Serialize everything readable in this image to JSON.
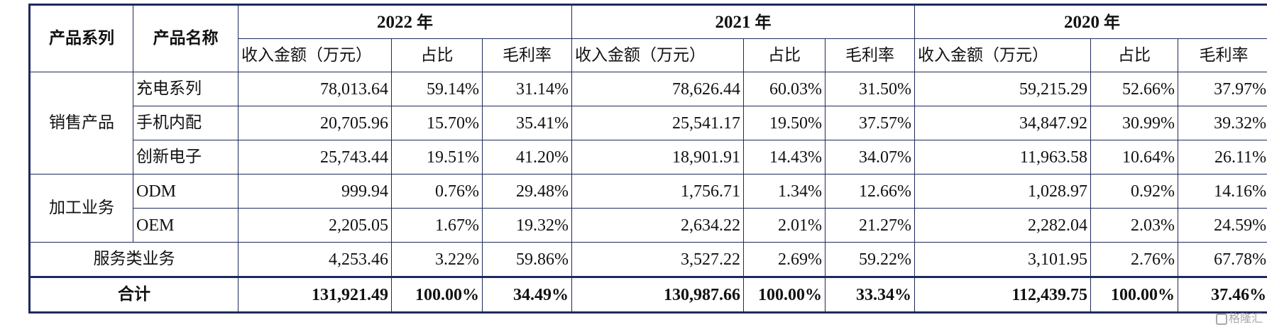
{
  "headers": {
    "series": "产品系列",
    "name": "产品名称",
    "years": [
      {
        "year": "2022",
        "unit": "年"
      },
      {
        "year": "2021",
        "unit": "年"
      },
      {
        "year": "2020",
        "unit": "年"
      }
    ],
    "sub": {
      "amount": "收入金额（万元）",
      "ratio": "占比",
      "margin": "毛利率"
    }
  },
  "groups": {
    "sales": "销售产品",
    "processing": "加工业务"
  },
  "rows": [
    {
      "name": "充电系列",
      "v": [
        "78,013.64",
        "59.14%",
        "31.14%",
        "78,626.44",
        "60.03%",
        "31.50%",
        "59,215.29",
        "52.66%",
        "37.97%"
      ]
    },
    {
      "name": "手机内配",
      "v": [
        "20,705.96",
        "15.70%",
        "35.41%",
        "25,541.17",
        "19.50%",
        "37.57%",
        "34,847.92",
        "30.99%",
        "39.32%"
      ]
    },
    {
      "name": "创新电子",
      "v": [
        "25,743.44",
        "19.51%",
        "41.20%",
        "18,901.91",
        "14.43%",
        "34.07%",
        "11,963.58",
        "10.64%",
        "26.11%"
      ]
    },
    {
      "name": "ODM",
      "v": [
        "999.94",
        "0.76%",
        "29.48%",
        "1,756.71",
        "1.34%",
        "12.66%",
        "1,028.97",
        "0.92%",
        "14.16%"
      ]
    },
    {
      "name": "OEM",
      "v": [
        "2,205.05",
        "1.67%",
        "19.32%",
        "2,634.22",
        "2.01%",
        "21.27%",
        "2,282.04",
        "2.03%",
        "24.59%"
      ]
    },
    {
      "name": "服务类业务",
      "v": [
        "4,253.46",
        "3.22%",
        "59.86%",
        "3,527.22",
        "2.69%",
        "59.22%",
        "3,101.95",
        "2.76%",
        "67.78%"
      ]
    }
  ],
  "total": {
    "label": "合计",
    "v": [
      "131,921.49",
      "100.00%",
      "34.49%",
      "130,987.66",
      "100.00%",
      "33.34%",
      "112,439.75",
      "100.00%",
      "37.46%"
    ]
  },
  "watermark": "格隆汇"
}
